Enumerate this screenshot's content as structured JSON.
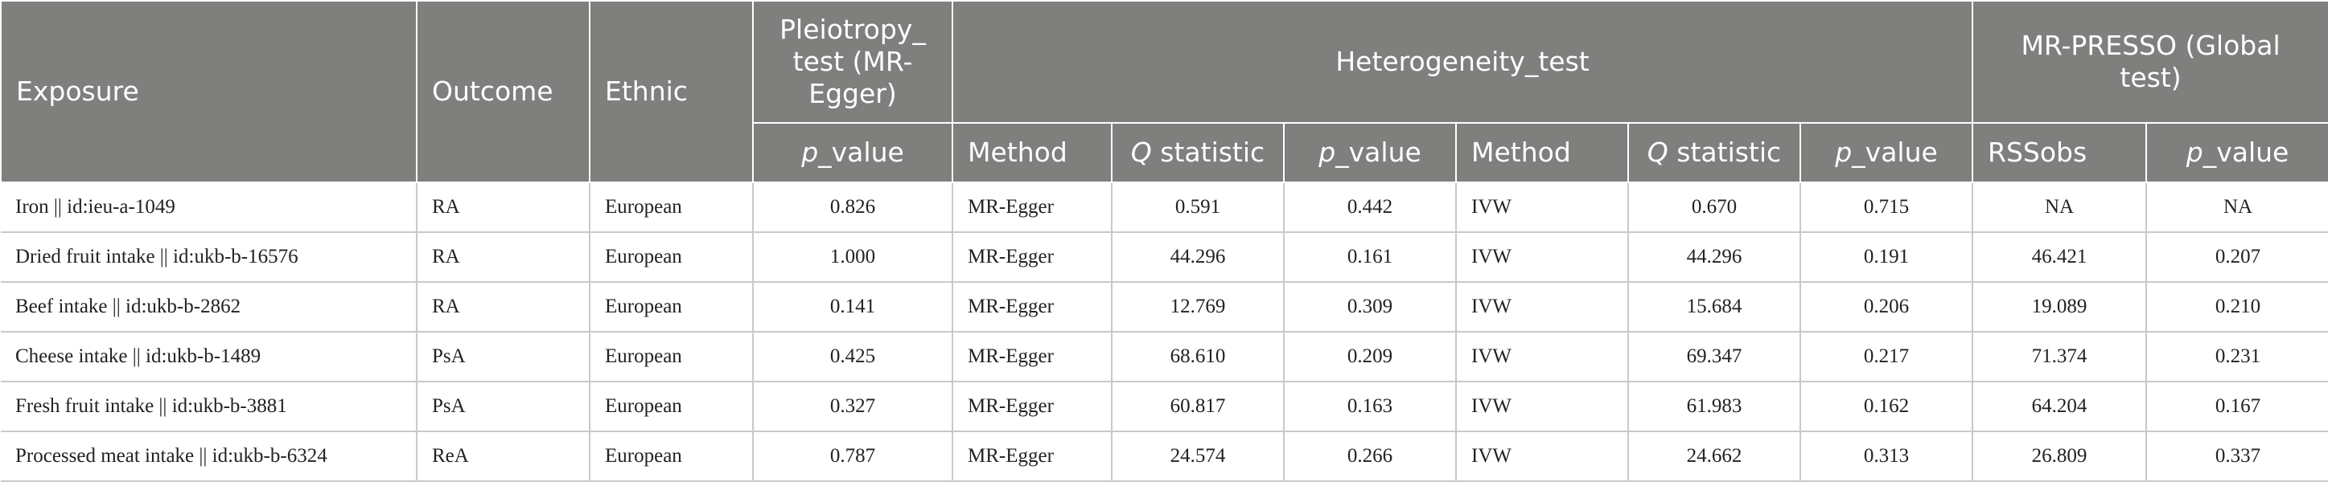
{
  "header": {
    "exposure": "Exposure",
    "outcome": "Outcome",
    "ethnic": "Ethnic",
    "pleiotropy": "Pleiotropy_ test (MR-Egger)",
    "heterogeneity": "Heterogeneity_test",
    "mrpresso": "MR-PRESSO (Global test)",
    "sub": {
      "p_prefix": "p",
      "value_suffix": "_value",
      "method": "Method",
      "q_prefix": "Q",
      "statistic_suffix": " statistic",
      "rssobs": "RSSobs"
    }
  },
  "rows": [
    {
      "exposure": "Iron || id:ieu-a-1049",
      "outcome": "RA",
      "ethnic": "European",
      "pleio_p": "0.826",
      "method1": "MR-Egger",
      "q1": "0.591",
      "p1": "0.442",
      "method2": "IVW",
      "q2": "0.670",
      "p2": "0.715",
      "rssobs": "NA",
      "presso_p": "NA"
    },
    {
      "exposure": "Dried fruit intake || id:ukb-b-16576",
      "outcome": "RA",
      "ethnic": "European",
      "pleio_p": "1.000",
      "method1": "MR-Egger",
      "q1": "44.296",
      "p1": "0.161",
      "method2": "IVW",
      "q2": "44.296",
      "p2": "0.191",
      "rssobs": "46.421",
      "presso_p": "0.207"
    },
    {
      "exposure": "Beef intake || id:ukb-b-2862",
      "outcome": "RA",
      "ethnic": "European",
      "pleio_p": "0.141",
      "method1": "MR-Egger",
      "q1": "12.769",
      "p1": "0.309",
      "method2": "IVW",
      "q2": "15.684",
      "p2": "0.206",
      "rssobs": "19.089",
      "presso_p": "0.210"
    },
    {
      "exposure": "Cheese intake || id:ukb-b-1489",
      "outcome": "PsA",
      "ethnic": "European",
      "pleio_p": "0.425",
      "method1": "MR-Egger",
      "q1": "68.610",
      "p1": "0.209",
      "method2": "IVW",
      "q2": "69.347",
      "p2": "0.217",
      "rssobs": "71.374",
      "presso_p": "0.231"
    },
    {
      "exposure": "Fresh fruit intake || id:ukb-b-3881",
      "outcome": "PsA",
      "ethnic": "European",
      "pleio_p": "0.327",
      "method1": "MR-Egger",
      "q1": "60.817",
      "p1": "0.163",
      "method2": "IVW",
      "q2": "61.983",
      "p2": "0.162",
      "rssobs": "64.204",
      "presso_p": "0.167"
    },
    {
      "exposure": "Processed meat intake || id:ukb-b-6324",
      "outcome": "ReA",
      "ethnic": "European",
      "pleio_p": "0.787",
      "method1": "MR-Egger",
      "q1": "24.574",
      "p1": "0.266",
      "method2": "IVW",
      "q2": "24.662",
      "p2": "0.313",
      "rssobs": "26.809",
      "presso_p": "0.337"
    }
  ]
}
